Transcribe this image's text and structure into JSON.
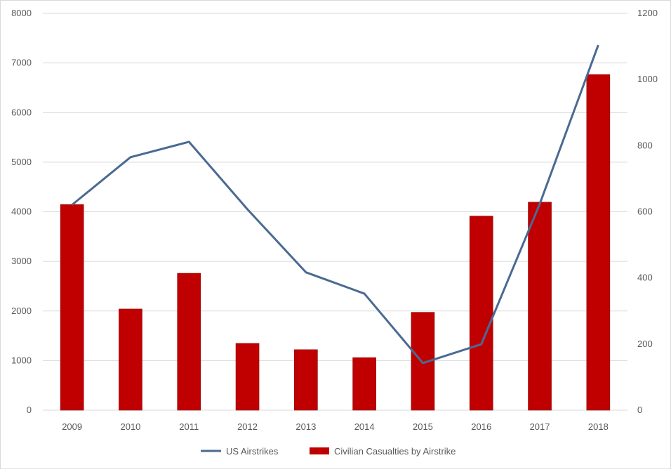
{
  "chart_data": {
    "type": "bar+line",
    "title": "",
    "categories": [
      "2009",
      "2010",
      "2011",
      "2012",
      "2013",
      "2014",
      "2015",
      "2016",
      "2017",
      "2018"
    ],
    "series": [
      {
        "name": "US Airstrikes",
        "type": "line",
        "axis": "left",
        "color": "#4a6a91",
        "values": [
          4140,
          5100,
          5410,
          4050,
          2780,
          2350,
          950,
          1330,
          4160,
          7360
        ]
      },
      {
        "name": "Civilian Casualties by Airstrike",
        "type": "bar",
        "axis": "right",
        "color": "#c00000",
        "values": [
          622,
          306,
          414,
          202,
          183,
          159,
          296,
          587,
          629,
          1015
        ]
      }
    ],
    "left_axis": {
      "ylim": [
        0,
        8000
      ],
      "ticks": [
        "0",
        "1000",
        "2000",
        "3000",
        "4000",
        "5000",
        "6000",
        "7000",
        "8000"
      ]
    },
    "right_axis": {
      "ylim": [
        0,
        1200
      ],
      "ticks": [
        "0",
        "200",
        "400",
        "600",
        "800",
        "1000",
        "1200"
      ]
    },
    "grid": true,
    "legend": "bottom"
  }
}
